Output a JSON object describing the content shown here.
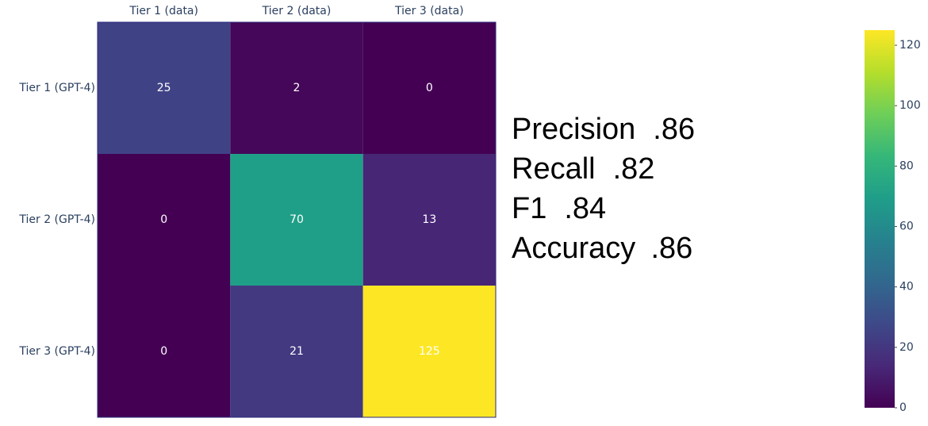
{
  "chart_data": {
    "type": "heatmap",
    "x_categories": [
      "Tier 1 (data)",
      "Tier 2 (data)",
      "Tier 3 (data)"
    ],
    "y_categories": [
      "Tier 1 (GPT-4)",
      "Tier 2 (GPT-4)",
      "Tier 3 (GPT-4)"
    ],
    "z": [
      [
        25,
        2,
        0
      ],
      [
        0,
        70,
        13
      ],
      [
        0,
        21,
        125
      ]
    ],
    "zlim": [
      0,
      125
    ],
    "zticks": [
      0,
      20,
      40,
      60,
      80,
      100,
      120
    ],
    "colorscale": [
      "#440154",
      "#482878",
      "#3e4989",
      "#31688e",
      "#26828e",
      "#1f9e89",
      "#35b779",
      "#6ece58",
      "#b5de2b",
      "#fde725"
    ],
    "metrics": [
      {
        "label": "Precision",
        "value": ".86"
      },
      {
        "label": "Recall",
        "value": ".82"
      },
      {
        "label": "F1",
        "value": ".84"
      },
      {
        "label": "Accuracy",
        "value": ".86"
      }
    ]
  }
}
